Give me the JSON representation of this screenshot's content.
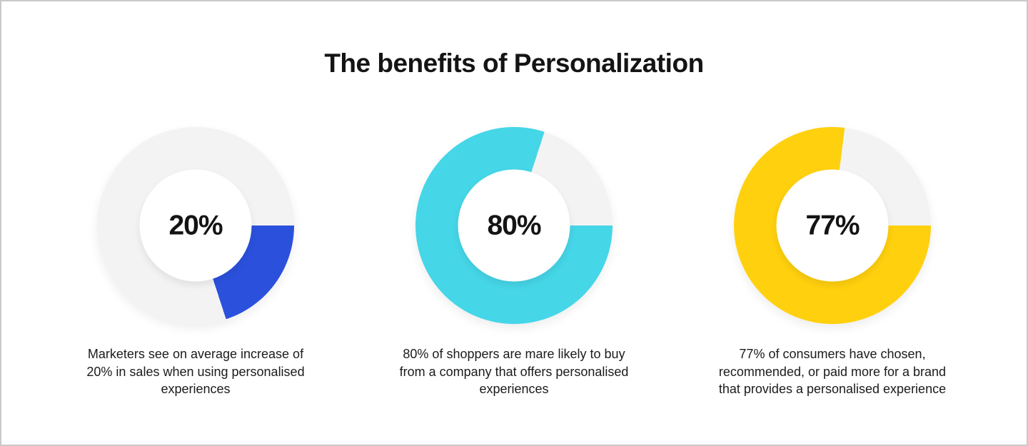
{
  "header": {
    "title": "The benefits of Personalization"
  },
  "colors": {
    "background": "#ffffff",
    "page_border": "#c9c9c9",
    "track": "#f3f3f3",
    "text": "#1b1b1b",
    "blue": "#2b51dc",
    "cyan": "#45d6e8",
    "yellow": "#ffd00e"
  },
  "chart_data": [
    {
      "type": "pie",
      "variant": "donut",
      "center_label": "20%",
      "values": [
        20,
        80
      ],
      "categories": [
        "highlighted",
        "remainder"
      ],
      "segment_color": "#2b51dc",
      "track_color": "#f3f3f3",
      "start_angle_deg": 90,
      "direction": "clockwise",
      "caption": "Marketers see on average increase of 20% in sales when using personalised experiences"
    },
    {
      "type": "pie",
      "variant": "donut",
      "center_label": "80%",
      "values": [
        80,
        20
      ],
      "categories": [
        "highlighted",
        "remainder"
      ],
      "segment_color": "#45d6e8",
      "track_color": "#f3f3f3",
      "start_angle_deg": 90,
      "direction": "clockwise",
      "caption": "80% of shoppers are mare likely to buy from a company that offers personalised experiences"
    },
    {
      "type": "pie",
      "variant": "donut",
      "center_label": "77%",
      "values": [
        77,
        23
      ],
      "categories": [
        "highlighted",
        "remainder"
      ],
      "segment_color": "#ffd00e",
      "track_color": "#f3f3f3",
      "start_angle_deg": 90,
      "direction": "clockwise",
      "caption": "77% of consumers have chosen, recommended, or paid more for a brand that provides a personalised experience"
    }
  ]
}
